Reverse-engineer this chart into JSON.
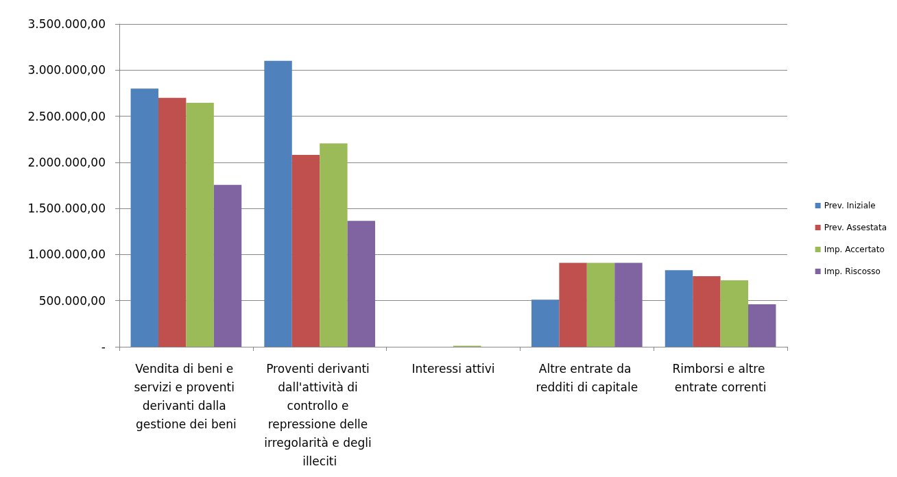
{
  "chart_data": {
    "type": "bar",
    "categories": [
      "Vendita di beni e servizi e proventi derivanti dalla gestione dei beni",
      "Proventi derivanti dall'attività di controllo e repressione delle irregolarità e degli illeciti",
      "Interessi attivi",
      "Altre entrate da redditi di capitale",
      "Rimborsi e altre entrate correnti"
    ],
    "series": [
      {
        "name": "Prev. Iniziale",
        "color": "#4f81bd",
        "values": [
          2800000,
          3100000,
          0,
          510000,
          830000
        ]
      },
      {
        "name": "Prev. Assestata",
        "color": "#c0504d",
        "values": [
          2700000,
          2080000,
          0,
          910000,
          765000
        ]
      },
      {
        "name": "Imp. Accertato",
        "color": "#9bbb59",
        "values": [
          2645000,
          2205000,
          12000,
          910000,
          720000
        ]
      },
      {
        "name": "Imp. Riscosso",
        "color": "#8064a2",
        "values": [
          1755000,
          1365000,
          0,
          910000,
          460000
        ]
      }
    ],
    "ylim": [
      0,
      3500000
    ],
    "yticks": [
      {
        "value": 0,
        "label": "-"
      },
      {
        "value": 500000,
        "label": "500.000,00"
      },
      {
        "value": 1000000,
        "label": "1.000.000,00"
      },
      {
        "value": 1500000,
        "label": "1.500.000,00"
      },
      {
        "value": 2000000,
        "label": "2.000.000,00"
      },
      {
        "value": 2500000,
        "label": "2.500.000,00"
      },
      {
        "value": 3000000,
        "label": "3.000.000,00"
      },
      {
        "value": 3500000,
        "label": "3.500.000,00"
      }
    ],
    "grid": "y",
    "legend": "right"
  }
}
